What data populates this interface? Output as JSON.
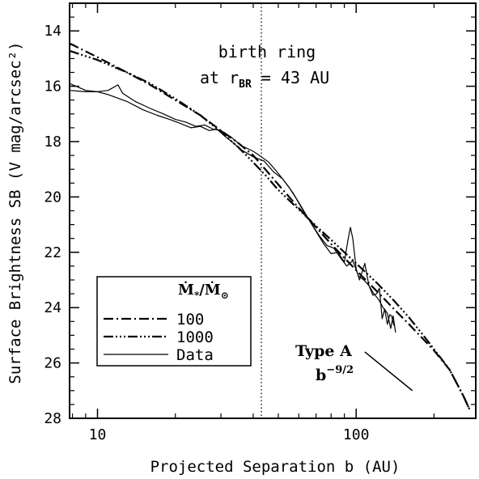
{
  "chart_data": {
    "type": "line",
    "title": "",
    "xlabel": "Projected Separation b (AU)",
    "ylabel": "Surface Brightness SB (V mag/arcsec²)",
    "xscale": "log",
    "xlim": [
      7.8,
      290
    ],
    "ylim": [
      28,
      13
    ],
    "y_inverted": true,
    "grid": false,
    "x_ticks": [
      {
        "value": 10,
        "label": "10"
      },
      {
        "value": 100,
        "label": "100"
      }
    ],
    "y_ticks": [
      {
        "value": 14,
        "label": "14"
      },
      {
        "value": 16,
        "label": "16"
      },
      {
        "value": 18,
        "label": "18"
      },
      {
        "value": 20,
        "label": "20"
      },
      {
        "value": 22,
        "label": "22"
      },
      {
        "value": 24,
        "label": "24"
      },
      {
        "value": 26,
        "label": "26"
      },
      {
        "value": 28,
        "label": "28"
      }
    ],
    "legend": {
      "placement": "lower-left",
      "title": "Ṁ*/Ṁ⊙",
      "entries": [
        "100",
        "1000",
        "Data"
      ]
    },
    "series": [
      {
        "name": "100",
        "style": "dash-dot",
        "points": [
          [
            7.8,
            14.45
          ],
          [
            10,
            14.95
          ],
          [
            13,
            15.5
          ],
          [
            16,
            15.95
          ],
          [
            20,
            16.5
          ],
          [
            25,
            17.05
          ],
          [
            30,
            17.6
          ],
          [
            35,
            18.05
          ],
          [
            40,
            18.5
          ],
          [
            45,
            19.05
          ],
          [
            50,
            19.55
          ],
          [
            60,
            20.4
          ],
          [
            70,
            21.1
          ],
          [
            80,
            21.7
          ],
          [
            100,
            22.65
          ],
          [
            120,
            23.4
          ],
          [
            140,
            24.05
          ],
          [
            160,
            24.6
          ],
          [
            180,
            25.1
          ],
          [
            200,
            25.55
          ],
          [
            230,
            26.25
          ],
          [
            260,
            27.2
          ],
          [
            275,
            27.7
          ]
        ]
      },
      {
        "name": "1000",
        "style": "dash-dot-dot-dot",
        "points": [
          [
            7.8,
            14.72
          ],
          [
            10,
            15.05
          ],
          [
            13,
            15.5
          ],
          [
            16,
            15.9
          ],
          [
            20,
            16.45
          ],
          [
            25,
            17.05
          ],
          [
            30,
            17.65
          ],
          [
            35,
            18.2
          ],
          [
            40,
            18.75
          ],
          [
            45,
            19.25
          ],
          [
            50,
            19.75
          ],
          [
            60,
            20.45
          ],
          [
            70,
            21.05
          ],
          [
            80,
            21.55
          ],
          [
            100,
            22.4
          ],
          [
            120,
            23.1
          ],
          [
            140,
            23.75
          ],
          [
            160,
            24.35
          ],
          [
            180,
            24.95
          ],
          [
            200,
            25.5
          ],
          [
            230,
            26.25
          ],
          [
            260,
            27.2
          ],
          [
            275,
            27.7
          ]
        ]
      },
      {
        "name": "Data",
        "style": "solid",
        "points": [
          [
            7.8,
            16.15
          ],
          [
            9,
            16.2
          ],
          [
            10,
            16.2
          ],
          [
            11,
            16.15
          ],
          [
            12,
            15.95
          ],
          [
            12.5,
            16.25
          ],
          [
            14,
            16.55
          ],
          [
            16,
            16.8
          ],
          [
            18,
            17.0
          ],
          [
            20,
            17.2
          ],
          [
            22,
            17.3
          ],
          [
            24,
            17.45
          ],
          [
            26,
            17.4
          ],
          [
            28,
            17.55
          ],
          [
            30,
            17.6
          ],
          [
            33,
            17.85
          ],
          [
            36,
            18.15
          ],
          [
            40,
            18.35
          ],
          [
            43,
            18.55
          ],
          [
            46,
            18.75
          ],
          [
            50,
            19.15
          ],
          [
            55,
            19.65
          ],
          [
            60,
            20.2
          ],
          [
            65,
            20.75
          ],
          [
            70,
            21.25
          ],
          [
            75,
            21.7
          ],
          [
            80,
            22.05
          ],
          [
            85,
            22.0
          ],
          [
            90,
            22.35
          ],
          [
            93,
            21.55
          ],
          [
            95,
            21.1
          ],
          [
            97,
            21.5
          ],
          [
            100,
            22.6
          ],
          [
            103,
            23.0
          ],
          [
            108,
            22.4
          ],
          [
            112,
            23.2
          ],
          [
            116,
            23.55
          ],
          [
            120,
            23.5
          ],
          [
            123,
            23.3
          ],
          [
            126,
            24.4
          ],
          [
            129,
            24.05
          ],
          [
            132,
            24.6
          ],
          [
            135,
            24.25
          ],
          [
            137,
            24.3
          ],
          [
            140,
            24.65
          ]
        ]
      },
      {
        "name": "Data",
        "style": "solid",
        "points": [
          [
            7.8,
            15.9
          ],
          [
            9,
            16.15
          ],
          [
            10,
            16.2
          ],
          [
            11,
            16.3
          ],
          [
            13,
            16.55
          ],
          [
            15,
            16.85
          ],
          [
            17,
            17.05
          ],
          [
            19,
            17.2
          ],
          [
            21,
            17.35
          ],
          [
            23,
            17.5
          ],
          [
            25,
            17.45
          ],
          [
            27,
            17.6
          ],
          [
            29,
            17.55
          ],
          [
            31,
            17.8
          ],
          [
            33,
            18.0
          ],
          [
            36,
            18.3
          ],
          [
            40,
            18.55
          ],
          [
            44,
            18.7
          ],
          [
            48,
            19.1
          ],
          [
            52,
            19.35
          ],
          [
            57,
            19.85
          ],
          [
            62,
            20.45
          ],
          [
            67,
            20.95
          ],
          [
            72,
            21.4
          ],
          [
            77,
            21.75
          ],
          [
            82,
            21.85
          ],
          [
            87,
            22.2
          ],
          [
            92,
            22.5
          ],
          [
            97,
            22.3
          ],
          [
            102,
            22.85
          ],
          [
            107,
            23.0
          ],
          [
            112,
            23.2
          ],
          [
            117,
            23.5
          ],
          [
            122,
            23.7
          ],
          [
            127,
            24.0
          ],
          [
            132,
            24.2
          ],
          [
            136,
            24.75
          ],
          [
            139,
            24.3
          ],
          [
            142,
            24.9
          ]
        ]
      }
    ],
    "reference_line": {
      "x": 43,
      "style": "dotted"
    },
    "annotations": [
      {
        "text": "birth ring"
      },
      {
        "text": "at r_BR = 43 AU"
      },
      {
        "text": "Type A"
      },
      {
        "text": "b^-9/2"
      }
    ],
    "type_a_line": {
      "points": [
        [
          108,
          25.6
        ],
        [
          165,
          27.0
        ]
      ]
    }
  },
  "annotation_text": {
    "birth_line1": "birth ring",
    "birth_at": "at r",
    "birth_sub": "BR",
    "birth_rest": " = 43 AU",
    "type_a": "Type A",
    "b_base": "b",
    "b_exp": "−9/2",
    "legend_title_main": "Ṁ",
    "legend_title_sub1": "*",
    "legend_title_slash": "/Ṁ",
    "legend_title_sub2": "⊙"
  }
}
